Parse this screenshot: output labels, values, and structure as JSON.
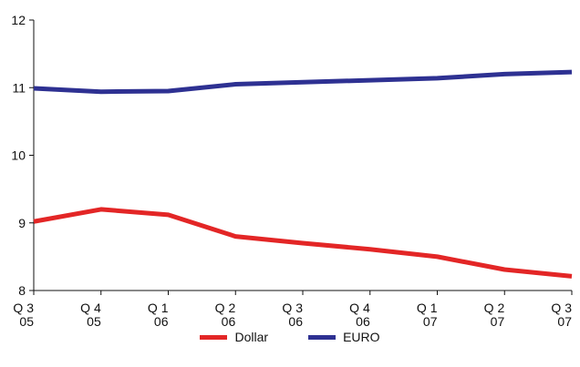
{
  "chart_data": {
    "type": "line",
    "categories": [
      {
        "q": "Q 3",
        "y": "05"
      },
      {
        "q": "Q 4",
        "y": "05"
      },
      {
        "q": "Q 1",
        "y": "06"
      },
      {
        "q": "Q 2",
        "y": "06"
      },
      {
        "q": "Q 3",
        "y": "06"
      },
      {
        "q": "Q 4",
        "y": "06"
      },
      {
        "q": "Q 1",
        "y": "07"
      },
      {
        "q": "Q  2",
        "y": "07"
      },
      {
        "q": "Q 3",
        "y": "07"
      }
    ],
    "series": [
      {
        "name": "Dollar",
        "color": "#e32626",
        "values": [
          9.02,
          9.2,
          9.12,
          8.8,
          8.7,
          8.61,
          8.5,
          8.31,
          8.21
        ]
      },
      {
        "name": "EURO",
        "color": "#2e3192",
        "values": [
          10.99,
          10.94,
          10.95,
          11.05,
          11.08,
          11.11,
          11.14,
          11.2,
          11.23
        ]
      }
    ],
    "ylim": [
      8,
      12
    ],
    "yticks": [
      8,
      9,
      10,
      11,
      12
    ],
    "grid": false,
    "legend_position": "bottom-center",
    "title": "",
    "xlabel": "",
    "ylabel": ""
  }
}
